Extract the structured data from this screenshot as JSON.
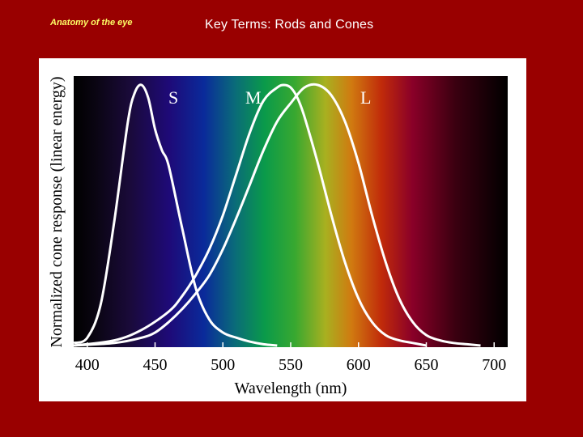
{
  "slide": {
    "header": "Anatomy of the eye",
    "title": "Key Terms: Rods and Cones"
  },
  "colors": {
    "background": "#990000",
    "header_text": "#ffff66",
    "title_text": "#ffffff",
    "curve": "#ffffff"
  },
  "chart_data": {
    "type": "line",
    "title": "",
    "xlabel": "Wavelength (nm)",
    "ylabel": "Normalized cone response (linear energy)",
    "xlim": [
      390,
      710
    ],
    "ylim": [
      0,
      1
    ],
    "x_ticks": [
      400,
      450,
      500,
      550,
      600,
      650,
      700
    ],
    "grid": false,
    "legend": "none",
    "background": "visible spectrum gradient",
    "series": [
      {
        "name": "S",
        "color": "#ffffff",
        "x": [
          390,
          400,
          410,
          420,
          430,
          435,
          440,
          445,
          450,
          455,
          460,
          470,
          480,
          490,
          500,
          510,
          520,
          530,
          540
        ],
        "y": [
          0.01,
          0.03,
          0.16,
          0.48,
          0.86,
          0.97,
          1.0,
          0.95,
          0.83,
          0.75,
          0.69,
          0.45,
          0.22,
          0.1,
          0.05,
          0.03,
          0.015,
          0.005,
          0.0
        ]
      },
      {
        "name": "M",
        "color": "#ffffff",
        "x": [
          390,
          420,
          440,
          460,
          470,
          480,
          490,
          500,
          510,
          520,
          530,
          540,
          545,
          550,
          555,
          560,
          570,
          580,
          590,
          600,
          610,
          620,
          630,
          640,
          650
        ],
        "y": [
          0.0,
          0.02,
          0.06,
          0.13,
          0.19,
          0.27,
          0.37,
          0.5,
          0.66,
          0.82,
          0.94,
          0.99,
          1.0,
          0.99,
          0.95,
          0.88,
          0.7,
          0.5,
          0.32,
          0.18,
          0.09,
          0.04,
          0.02,
          0.01,
          0.0
        ]
      },
      {
        "name": "L",
        "color": "#ffffff",
        "x": [
          390,
          420,
          440,
          450,
          460,
          470,
          480,
          490,
          500,
          510,
          520,
          530,
          540,
          550,
          560,
          570,
          580,
          590,
          600,
          610,
          620,
          630,
          640,
          650,
          660,
          670,
          680,
          690
        ],
        "y": [
          0.0,
          0.01,
          0.03,
          0.05,
          0.09,
          0.14,
          0.2,
          0.27,
          0.37,
          0.49,
          0.62,
          0.75,
          0.86,
          0.93,
          0.99,
          1.0,
          0.96,
          0.86,
          0.7,
          0.5,
          0.32,
          0.18,
          0.09,
          0.04,
          0.02,
          0.01,
          0.005,
          0.0
        ]
      }
    ]
  }
}
